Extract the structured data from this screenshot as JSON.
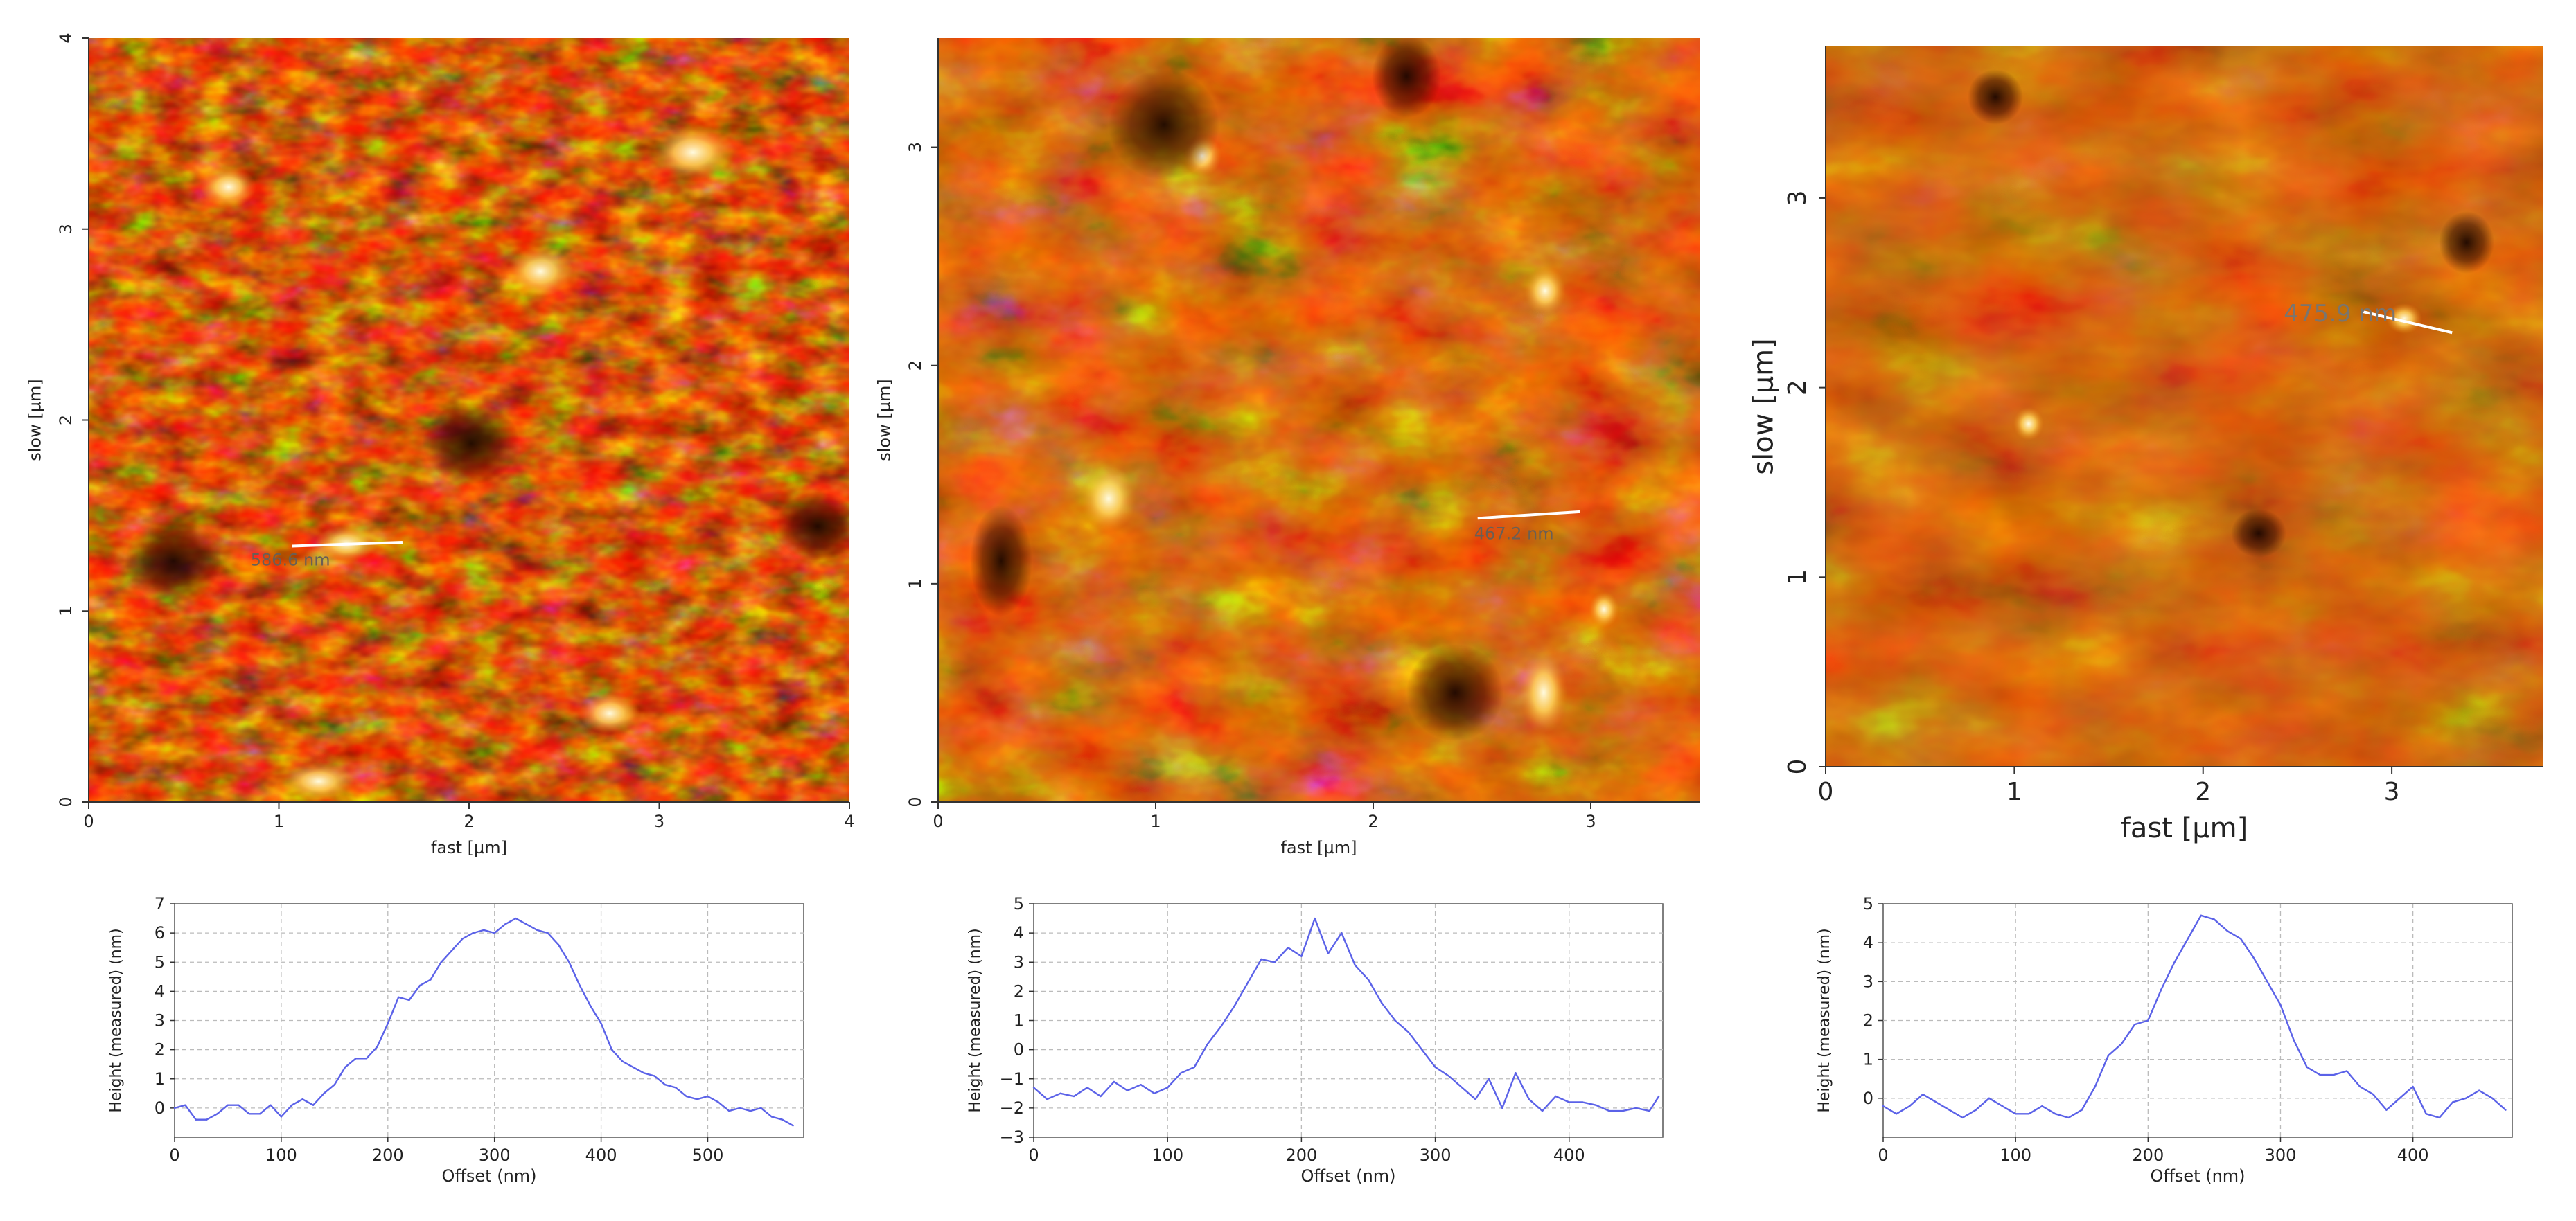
{
  "figure": {
    "description_free": true
  },
  "afm_panels": [
    {
      "id": "a",
      "x_label": "fast [µm]",
      "y_label": "slow [µm]",
      "x_range": [
        0,
        4
      ],
      "y_range": [
        0,
        4
      ],
      "x_ticks": [
        0,
        1,
        2,
        3,
        4
      ],
      "y_ticks": [
        0,
        1,
        2,
        3,
        4
      ],
      "measurement_label": "586.6 nm",
      "measurement_line": {
        "x1": 1.07,
        "y1": 1.34,
        "x2": 1.65,
        "y2": 1.36
      }
    },
    {
      "id": "b",
      "x_label": "fast [µm]",
      "y_label": "slow [µm]",
      "x_range": [
        0,
        3.5
      ],
      "y_range": [
        0,
        3.5
      ],
      "x_ticks": [
        0,
        1,
        2,
        3
      ],
      "y_ticks": [
        0,
        1,
        2,
        3
      ],
      "measurement_label": "467.2 nm",
      "measurement_line": {
        "x1": 2.48,
        "y1": 1.3,
        "x2": 2.95,
        "y2": 1.33
      }
    },
    {
      "id": "c",
      "x_label": "fast [µm]",
      "y_label": "slow [µm]",
      "x_range": [
        0,
        3.8
      ],
      "y_range": [
        0,
        3.8
      ],
      "x_ticks": [
        0,
        1,
        2,
        3
      ],
      "y_ticks": [
        0,
        1,
        2,
        3
      ],
      "measurement_label": "475.9 nm",
      "measurement_line": {
        "x1": 2.85,
        "y1": 2.4,
        "x2": 3.32,
        "y2": 2.29
      }
    }
  ],
  "chart_data": [
    {
      "type": "line",
      "title": "",
      "xlabel": "Offset (nm)",
      "ylabel": "Height (measured) (nm)",
      "xlim": [
        0,
        590
      ],
      "ylim": [
        -1,
        7
      ],
      "xticks": [
        0,
        100,
        200,
        300,
        400,
        500
      ],
      "yticks": [
        0,
        1,
        2,
        3,
        4,
        5,
        6,
        7
      ],
      "grid": true,
      "series": [
        {
          "name": "profile",
          "color": "#5b62e8",
          "x": [
            0,
            10,
            20,
            30,
            40,
            50,
            60,
            70,
            80,
            90,
            100,
            110,
            120,
            130,
            140,
            150,
            160,
            170,
            180,
            190,
            200,
            210,
            220,
            230,
            240,
            250,
            260,
            270,
            280,
            290,
            300,
            310,
            320,
            330,
            340,
            350,
            360,
            370,
            380,
            390,
            400,
            410,
            420,
            430,
            440,
            450,
            460,
            470,
            480,
            490,
            500,
            510,
            520,
            530,
            540,
            550,
            560,
            570,
            580
          ],
          "y": [
            0.0,
            0.1,
            -0.4,
            -0.4,
            -0.2,
            0.1,
            0.1,
            -0.2,
            -0.2,
            0.1,
            -0.3,
            0.1,
            0.3,
            0.1,
            0.5,
            0.8,
            1.4,
            1.7,
            1.7,
            2.1,
            2.9,
            3.8,
            3.7,
            4.2,
            4.4,
            5.0,
            5.4,
            5.8,
            6.0,
            6.1,
            6.0,
            6.3,
            6.5,
            6.3,
            6.1,
            6.0,
            5.6,
            5.0,
            4.2,
            3.5,
            2.9,
            2.0,
            1.6,
            1.4,
            1.2,
            1.1,
            0.8,
            0.7,
            0.4,
            0.3,
            0.4,
            0.2,
            -0.1,
            0.0,
            -0.1,
            0.0,
            -0.3,
            -0.4,
            -0.6
          ]
        }
      ]
    },
    {
      "type": "line",
      "title": "",
      "xlabel": "Offset (nm)",
      "ylabel": "Height (measured) (nm)",
      "xlim": [
        0,
        470
      ],
      "ylim": [
        -3,
        5
      ],
      "xticks": [
        0,
        100,
        200,
        300,
        400
      ],
      "yticks": [
        -3,
        -2,
        -1,
        0,
        1,
        2,
        3,
        4,
        5
      ],
      "grid": true,
      "series": [
        {
          "name": "profile",
          "color": "#5b62e8",
          "x": [
            0,
            10,
            20,
            30,
            40,
            50,
            60,
            70,
            80,
            90,
            100,
            110,
            120,
            130,
            140,
            150,
            160,
            170,
            180,
            190,
            200,
            210,
            220,
            230,
            240,
            250,
            260,
            270,
            280,
            290,
            300,
            310,
            320,
            330,
            340,
            350,
            360,
            370,
            380,
            390,
            400,
            410,
            420,
            430,
            440,
            450,
            460,
            467
          ],
          "y": [
            -1.3,
            -1.7,
            -1.5,
            -1.6,
            -1.3,
            -1.6,
            -1.1,
            -1.4,
            -1.2,
            -1.5,
            -1.3,
            -0.8,
            -0.6,
            0.2,
            0.8,
            1.5,
            2.3,
            3.1,
            3.0,
            3.5,
            3.2,
            4.5,
            3.3,
            4.0,
            2.9,
            2.4,
            1.6,
            1.0,
            0.6,
            0.0,
            -0.6,
            -0.9,
            -1.3,
            -1.7,
            -1.0,
            -2.0,
            -0.8,
            -1.7,
            -2.1,
            -1.6,
            -1.8,
            -1.8,
            -1.9,
            -2.1,
            -2.1,
            -2.0,
            -2.1,
            -1.6
          ]
        }
      ]
    },
    {
      "type": "line",
      "title": "",
      "xlabel": "Offset (nm)",
      "ylabel": "Height (measured) (nm)",
      "xlim": [
        0,
        475
      ],
      "ylim": [
        -1,
        5
      ],
      "xticks": [
        0,
        100,
        200,
        300,
        400
      ],
      "yticks": [
        0,
        1,
        2,
        3,
        4,
        5
      ],
      "grid": true,
      "series": [
        {
          "name": "profile",
          "color": "#5b62e8",
          "x": [
            0,
            10,
            20,
            30,
            40,
            50,
            60,
            70,
            80,
            90,
            100,
            110,
            120,
            130,
            140,
            150,
            160,
            170,
            180,
            190,
            200,
            210,
            220,
            230,
            240,
            250,
            260,
            270,
            280,
            290,
            300,
            310,
            320,
            330,
            340,
            350,
            360,
            370,
            380,
            390,
            400,
            410,
            420,
            430,
            440,
            450,
            460,
            470
          ],
          "y": [
            -0.2,
            -0.4,
            -0.2,
            0.1,
            -0.1,
            -0.3,
            -0.5,
            -0.3,
            0.0,
            -0.2,
            -0.4,
            -0.4,
            -0.2,
            -0.4,
            -0.5,
            -0.3,
            0.3,
            1.1,
            1.4,
            1.9,
            2.0,
            2.8,
            3.5,
            4.1,
            4.7,
            4.6,
            4.3,
            4.1,
            3.6,
            3.0,
            2.4,
            1.5,
            0.8,
            0.6,
            0.6,
            0.7,
            0.3,
            0.1,
            -0.3,
            0.0,
            0.3,
            -0.4,
            -0.5,
            -0.1,
            0.0,
            0.2,
            0.0,
            -0.3
          ]
        }
      ]
    }
  ]
}
